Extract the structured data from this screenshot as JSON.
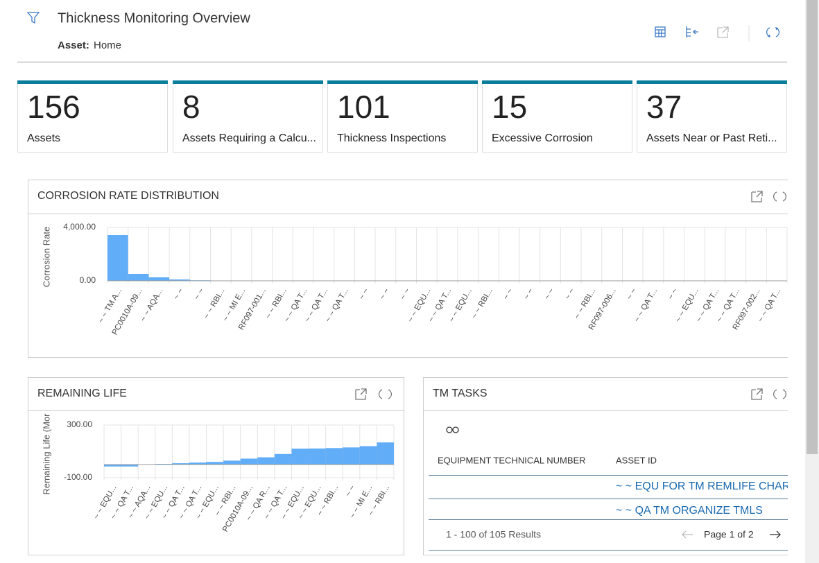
{
  "header": {
    "title": "Thickness Monitoring Overview",
    "asset_label": "Asset:",
    "asset_value": "Home"
  },
  "kpis": [
    {
      "value": 156,
      "label": "Assets"
    },
    {
      "value": 8,
      "label": "Assets Requiring a Calcu..."
    },
    {
      "value": 101,
      "label": "Thickness Inspections"
    },
    {
      "value": 15,
      "label": "Excessive Corrosion"
    },
    {
      "value": 37,
      "label": "Assets Near or Past Reti..."
    }
  ],
  "chart_data": [
    {
      "type": "bar",
      "title": "CORROSION RATE DISTRIBUTION",
      "y_label": "Corrosion Rate",
      "categories": [
        "~ ~ TM A...",
        "PC0010A-09...",
        "~ ~ AQA...",
        "~ ~",
        "~ ~",
        "~ ~ RBI...",
        "~ ~ MI E...",
        "RF097-001...",
        "~ ~ RBI...",
        "~ ~ QA T...",
        "~ ~ QA T...",
        "~ ~ QA T...",
        "~ ~",
        "~ ~",
        "~ ~",
        "~ ~ EQU...",
        "~ ~ QA T...",
        "~ ~ EQU...",
        "~ ~ RBI...",
        "~ ~",
        "~ ~",
        "~ ~",
        "~ ~",
        "~ ~ RBI...",
        "RF097-006...",
        "~ ~",
        "~ ~ QA T...",
        "~ ~",
        "~ ~ EQU...",
        "~ ~ QA T...",
        "~ ~ QA T...",
        "RF097-002...",
        "~ ~ QA T..."
      ],
      "values": [
        3430,
        520,
        260,
        100,
        40,
        0,
        0,
        0,
        0,
        0,
        0,
        0,
        0,
        0,
        0,
        0,
        0,
        0,
        0,
        0,
        0,
        0,
        0,
        0,
        0,
        0,
        0,
        0,
        0,
        0,
        0,
        0,
        0
      ],
      "color": "#62adf7",
      "ylim": [
        0,
        4000
      ],
      "yticks": [
        {
          "value": 4000,
          "label": "4,000.00"
        },
        {
          "value": 0,
          "label": "0.00"
        }
      ],
      "grid": true
    },
    {
      "type": "bar",
      "title": "REMAINING LIFE",
      "y_label": "Remaining Life (Mor",
      "categories": [
        "~ ~ EQU...",
        "~ ~ QA T...",
        "~ ~ AQA...",
        "~ ~ EQU...",
        "~ ~ QA T...",
        "~ ~ QA T...",
        "~ ~ EQU...",
        "~ ~ RBI...",
        "PC0010A-09...",
        "~ ~ QA R...",
        "~ ~ QA T...",
        "~ ~ EQU...",
        "~ ~ EQU...",
        "~ ~ RBI...",
        "~ ~",
        "~ ~ MI E...",
        "~ ~ RBI..."
      ],
      "values": [
        -15,
        -15,
        0,
        5,
        10,
        15,
        20,
        30,
        45,
        55,
        80,
        121,
        122,
        125,
        130,
        140,
        168
      ],
      "color": "#62adf7",
      "ylim": [
        -100,
        300
      ],
      "yticks": [
        {
          "value": 300,
          "label": "300.00"
        },
        {
          "value": -100,
          "label": "-100.00"
        }
      ],
      "grid": true
    }
  ],
  "tm_tasks": {
    "title": "TM TASKS",
    "columns": [
      "EQUIPMENT TECHNICAL NUMBER",
      "ASSET ID"
    ],
    "rows": [
      {
        "asset_id": "~ ~ EQU FOR TM REMLIFE CHAR"
      },
      {
        "asset_id": "~ ~ QA TM ORGANIZE TMLS"
      }
    ],
    "results": "1 - 100 of 105 Results",
    "page": "Page 1 of 2"
  }
}
